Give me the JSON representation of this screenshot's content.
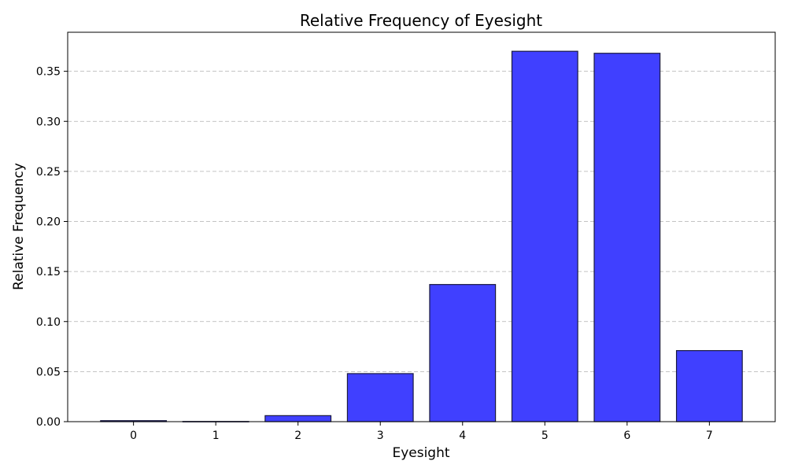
{
  "chart_data": {
    "type": "bar",
    "title": "Relative Frequency of Eyesight",
    "xlabel": "Eyesight",
    "ylabel": "Relative Frequency",
    "categories": [
      "0",
      "1",
      "2",
      "3",
      "4",
      "5",
      "6",
      "7"
    ],
    "values": [
      0.001,
      0.0002,
      0.006,
      0.048,
      0.137,
      0.37,
      0.368,
      0.071
    ],
    "ylim": [
      0,
      0.389
    ],
    "yticks": [
      0.0,
      0.05,
      0.1,
      0.15,
      0.2,
      0.25,
      0.3,
      0.35
    ],
    "ytick_labels": [
      "0.00",
      "0.05",
      "0.10",
      "0.15",
      "0.20",
      "0.25",
      "0.30",
      "0.35"
    ],
    "grid": "y-dashed",
    "bar_color": "#4040ff",
    "edge_color": "#1a1a40"
  }
}
